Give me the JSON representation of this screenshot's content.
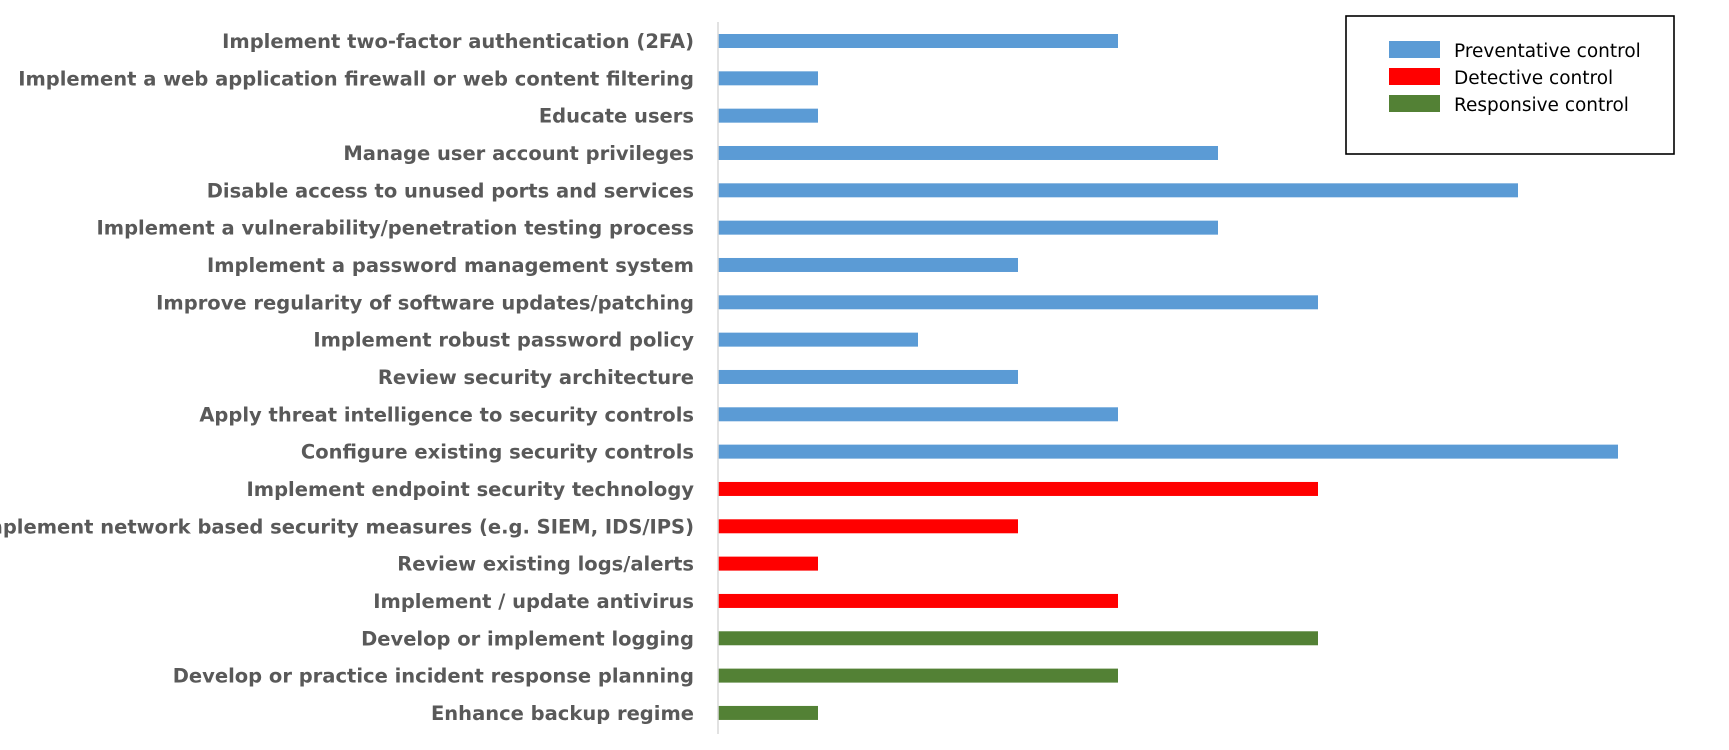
{
  "chart_data": {
    "type": "bar",
    "orientation": "horizontal",
    "title": "",
    "xlabel": "",
    "ylabel": "",
    "xlim": [
      0,
      9
    ],
    "grid": false,
    "legend_position": "top-right",
    "categories": [
      "Implement two-factor authentication (2FA)",
      "Implement a web application firewall or web content filtering",
      "Educate users",
      "Manage user account privileges",
      "Disable access to unused ports and services",
      "Implement a vulnerability/penetration testing process",
      "Implement a password management system",
      "Improve regularity of software updates/patching",
      "Implement robust password policy",
      "Review security architecture",
      "Apply threat intelligence to security controls",
      "Configure existing security controls",
      "Implement endpoint security technology",
      "Implement network based security measures (e.g. SIEM, IDS/IPS)",
      "Review existing logs/alerts",
      "Implement / update antivirus",
      "Develop or implement logging",
      "Develop or practice incident response planning",
      "Enhance backup regime"
    ],
    "values": [
      4,
      1,
      1,
      5,
      8,
      5,
      3,
      6,
      2,
      3,
      4,
      9,
      6,
      3,
      1,
      4,
      6,
      4,
      1
    ],
    "bar_series": [
      0,
      0,
      0,
      0,
      0,
      0,
      0,
      0,
      0,
      0,
      0,
      0,
      1,
      1,
      1,
      1,
      2,
      2,
      2
    ],
    "series": [
      {
        "name": "Preventative control",
        "color": "#5B9BD5"
      },
      {
        "name": "Detective control",
        "color": "#FF0000"
      },
      {
        "name": "Responsive control",
        "color": "#538135"
      }
    ]
  }
}
